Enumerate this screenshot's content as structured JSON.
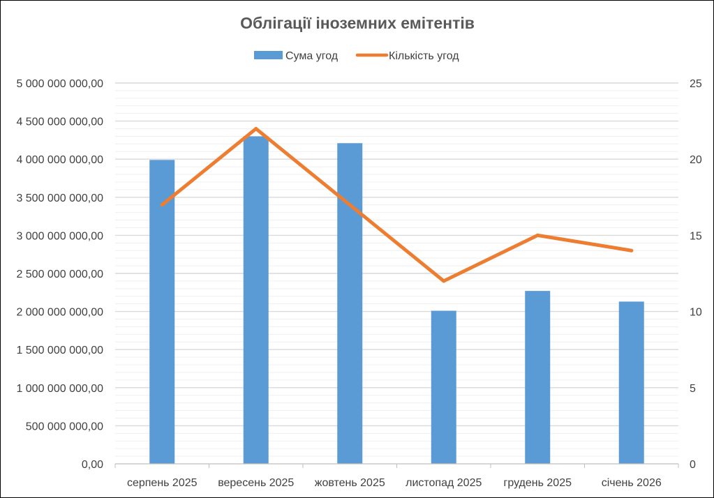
{
  "colors": {
    "bar": "#5B9BD5",
    "line": "#ED7D31",
    "text": "#404040",
    "title": "#595959",
    "grid": "#D9D9D9",
    "grid_minor": "#EFEFEF",
    "axis": "#BFBFBF"
  },
  "chart_data": {
    "type": "bar",
    "title": "Облігації іноземних емітентів",
    "categories": [
      "серпень 2025",
      "вересень 2025",
      "жовтень 2025",
      "листопад 2025",
      "грудень 2025",
      "січень 2026"
    ],
    "series": [
      {
        "name": "Сума угод",
        "type": "bar",
        "axis": "left",
        "values": [
          3990000000,
          4300000000,
          4210000000,
          2010000000,
          2270000000,
          2130000000
        ]
      },
      {
        "name": "Кількість угод",
        "type": "line",
        "axis": "right",
        "values": [
          17,
          22,
          17,
          12,
          15,
          14
        ]
      }
    ],
    "ylim_left": [
      0,
      5000000000
    ],
    "ylim_right": [
      0,
      25
    ],
    "left_ticks": [
      "0,00",
      "500 000 000,00",
      "1 000 000 000,00",
      "1 500 000 000,00",
      "2 000 000 000,00",
      "2 500 000 000,00",
      "3 000 000 000,00",
      "3 500 000 000,00",
      "4 000 000 000,00",
      "4 500 000 000,00",
      "5 000 000 000,00"
    ],
    "right_ticks": [
      "0",
      "5",
      "10",
      "15",
      "20",
      "25"
    ],
    "legend_position": "top",
    "grid": true
  }
}
